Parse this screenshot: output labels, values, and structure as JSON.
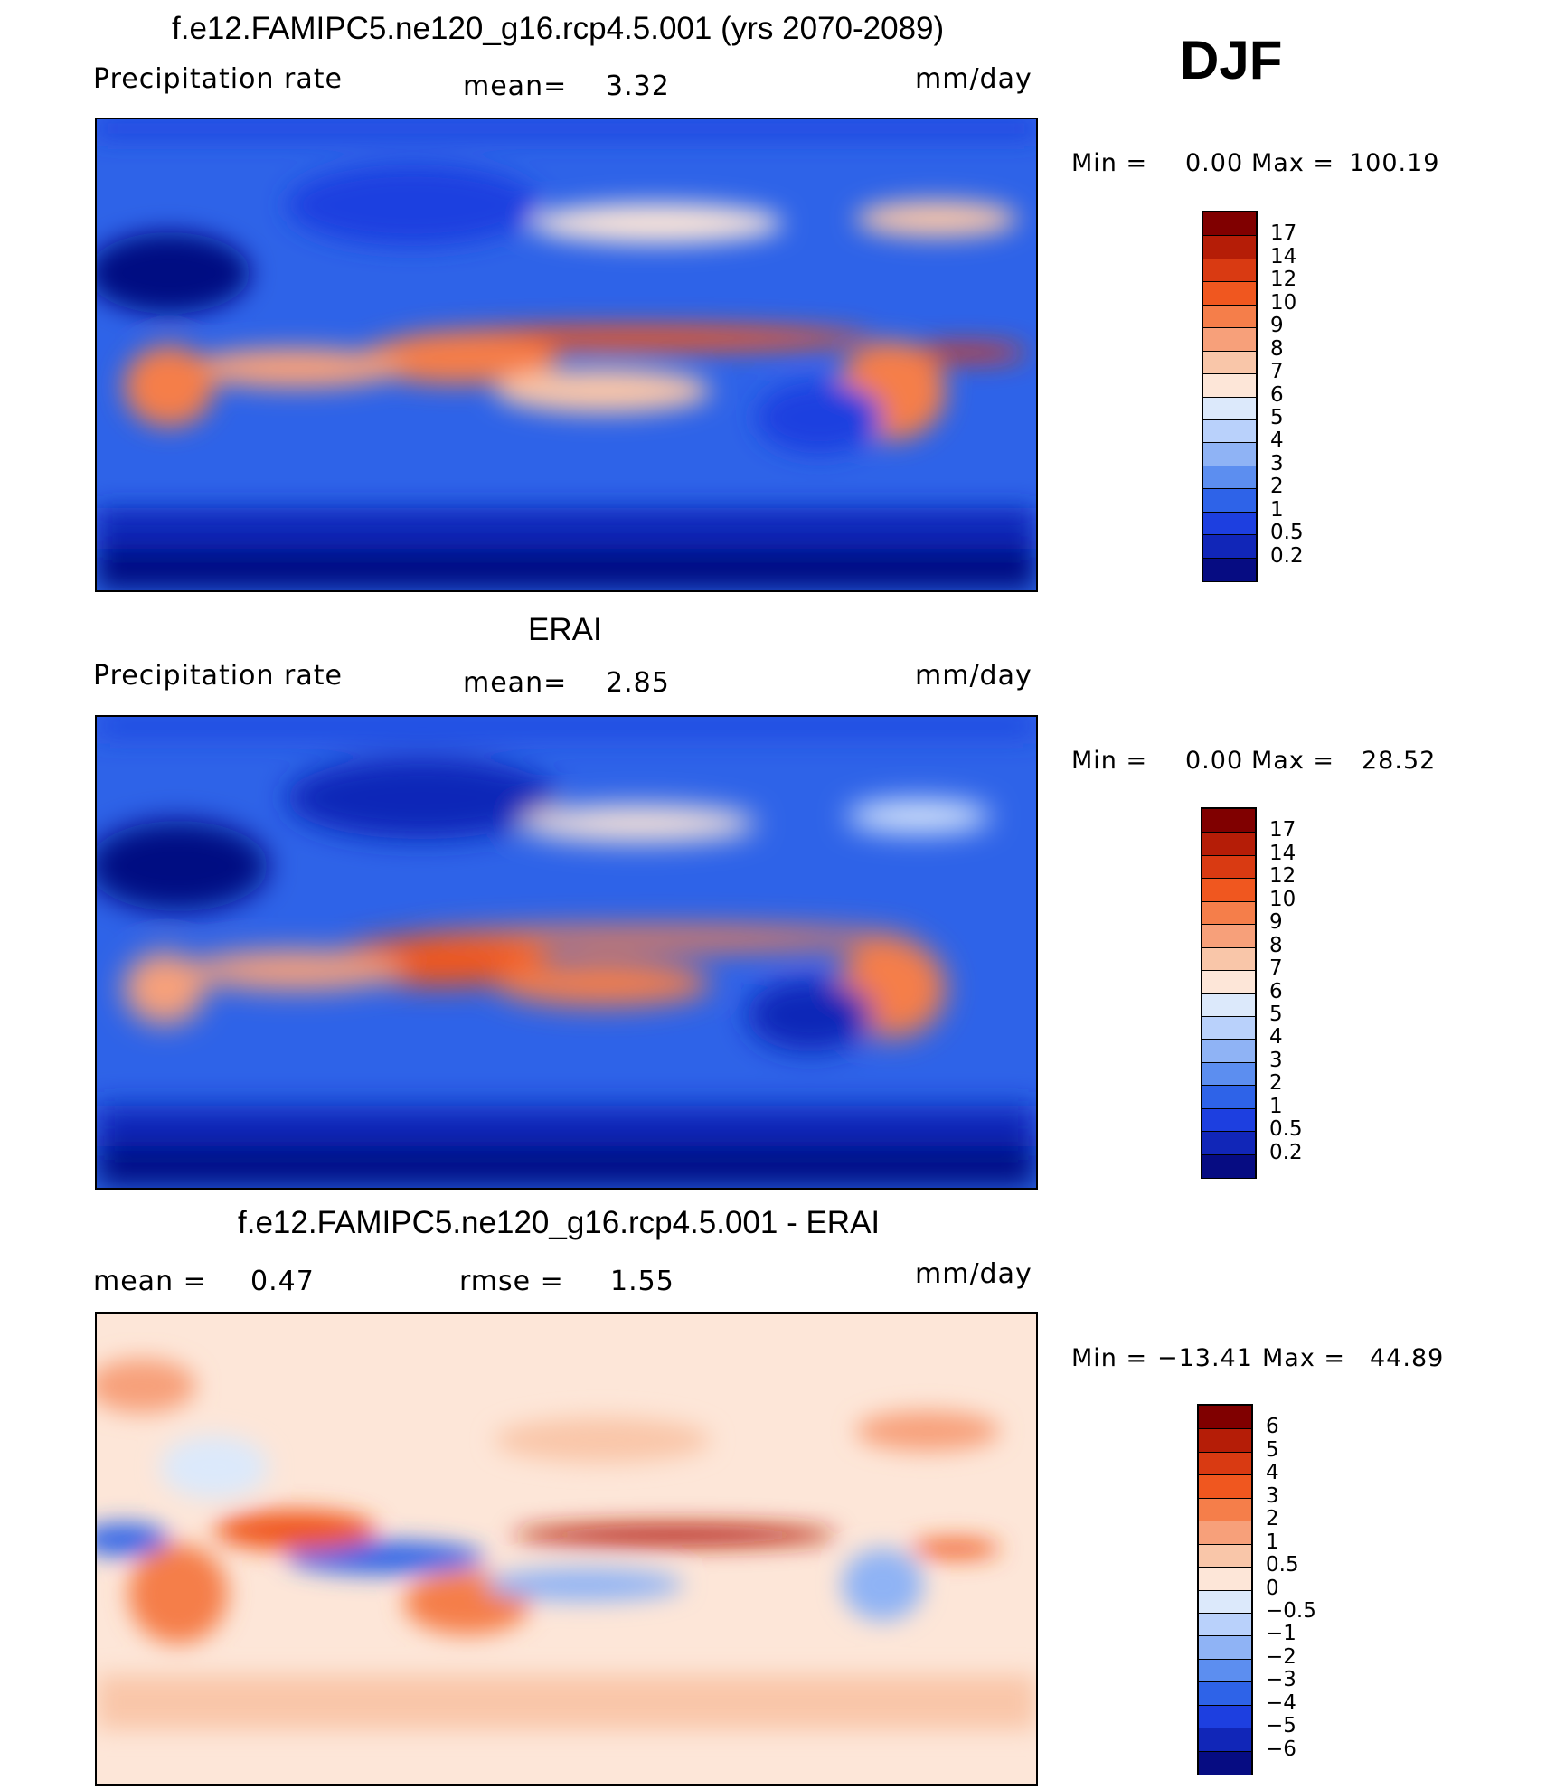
{
  "figure": {
    "season": "DJF"
  },
  "chart_data": [
    {
      "type": "heatmap",
      "title": "f.e12.FAMIPC5.ne120_g16.rcp4.5.001 (yrs 2070-2089)",
      "variable": "Precipitation rate",
      "units": "mm/day",
      "stat1_label": "mean=",
      "stat1_value": "3.32",
      "stat2_label": "",
      "stat2_value": "",
      "min_text": "Min =",
      "min_value": "0.00",
      "max_text": "Max =",
      "max_value": "100.19",
      "colorbar_levels": [
        "17",
        "14",
        "12",
        "10",
        "9",
        "8",
        "7",
        "6",
        "5",
        "4",
        "3",
        "2",
        "1",
        "0.5",
        "0.2"
      ],
      "colorbar_colors": [
        "#800000",
        "#b51d07",
        "#d93a12",
        "#f0571f",
        "#f57e4a",
        "#f7a07a",
        "#f9c6a9",
        "#fde6d8",
        "#dce9fb",
        "#b9d1fb",
        "#8fb3f5",
        "#5c8ef0",
        "#2e63e8",
        "#1d3fe0",
        "#1126b8",
        "#060c82"
      ],
      "lat_range": [
        -90,
        90
      ],
      "lon_range": [
        0,
        360
      ]
    },
    {
      "type": "heatmap",
      "title": "ERAI",
      "variable": "Precipitation rate",
      "units": "mm/day",
      "stat1_label": "mean=",
      "stat1_value": "2.85",
      "stat2_label": "",
      "stat2_value": "",
      "min_text": "Min =",
      "min_value": "0.00",
      "max_text": "Max =",
      "max_value": "28.52",
      "colorbar_levels": [
        "17",
        "14",
        "12",
        "10",
        "9",
        "8",
        "7",
        "6",
        "5",
        "4",
        "3",
        "2",
        "1",
        "0.5",
        "0.2"
      ],
      "colorbar_colors": [
        "#800000",
        "#b51d07",
        "#d93a12",
        "#f0571f",
        "#f57e4a",
        "#f7a07a",
        "#f9c6a9",
        "#fde6d8",
        "#dce9fb",
        "#b9d1fb",
        "#8fb3f5",
        "#5c8ef0",
        "#2e63e8",
        "#1d3fe0",
        "#1126b8",
        "#060c82"
      ],
      "lat_range": [
        -90,
        90
      ],
      "lon_range": [
        0,
        360
      ]
    },
    {
      "type": "heatmap",
      "title": "f.e12.FAMIPC5.ne120_g16.rcp4.5.001 - ERAI",
      "variable": "",
      "units": "mm/day",
      "stat1_label": "mean =",
      "stat1_value": "0.47",
      "stat2_label": "rmse =",
      "stat2_value": "1.55",
      "min_text": "Min =",
      "min_value": "−13.41",
      "max_text": "Max =",
      "max_value": "44.89",
      "colorbar_levels": [
        "6",
        "5",
        "4",
        "3",
        "2",
        "1",
        "0.5",
        "0",
        "−0.5",
        "−1",
        "−2",
        "−3",
        "−4",
        "−5",
        "−6"
      ],
      "colorbar_colors": [
        "#800000",
        "#b51d07",
        "#d93a12",
        "#f0571f",
        "#f57e4a",
        "#f7a07a",
        "#f9c6a9",
        "#fde6d8",
        "#dce9fb",
        "#b9d1fb",
        "#8fb3f5",
        "#5c8ef0",
        "#2e63e8",
        "#1d3fe0",
        "#1126b8",
        "#060c82"
      ],
      "lat_range": [
        -90,
        90
      ],
      "lon_range": [
        0,
        360
      ]
    }
  ]
}
